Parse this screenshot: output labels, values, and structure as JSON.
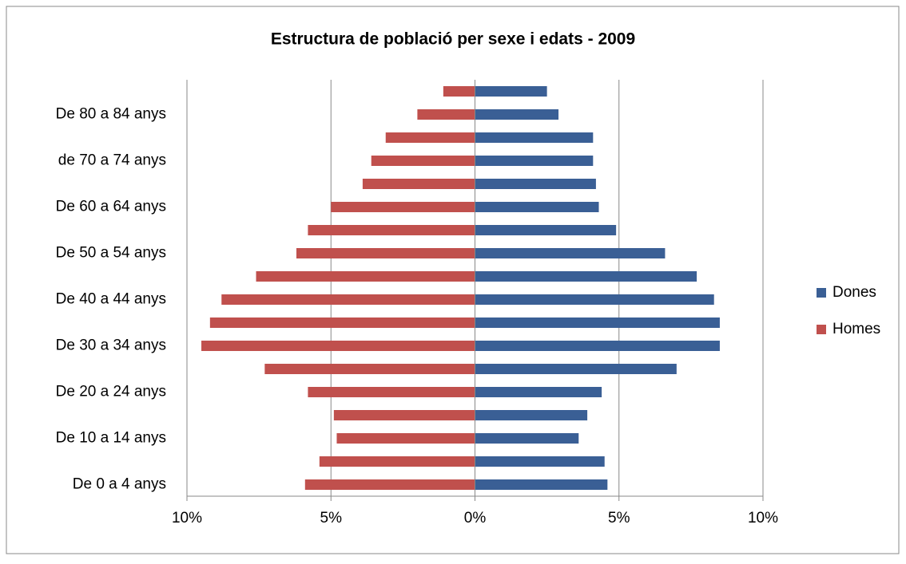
{
  "chart_data": {
    "type": "bar",
    "orientation": "horizontal",
    "stacked": true,
    "title": "Estructura de població per sexe i edats - 2009",
    "categories": [
      "De 0 a 4 anys",
      null,
      "De 10 a 14 anys",
      null,
      "De 20 a 24 anys",
      null,
      "De 30 a 34 anys",
      null,
      "De 40 a 44 anys",
      null,
      "De 50 a 54 anys",
      null,
      "De 60 a 64 anys",
      null,
      "de 70 a 74 anys",
      null,
      "De 80 a 84 anys",
      null
    ],
    "series": [
      {
        "name": "Dones",
        "color": "#3a5f95",
        "values": [
          4.6,
          4.5,
          3.6,
          3.9,
          4.4,
          7.0,
          8.5,
          8.5,
          8.3,
          7.7,
          6.6,
          4.9,
          4.3,
          4.2,
          4.1,
          4.1,
          2.9,
          2.5
        ]
      },
      {
        "name": "Homes",
        "color": "#c0504d",
        "values": [
          -5.9,
          -5.4,
          -4.8,
          -4.9,
          -5.8,
          -7.3,
          -9.5,
          -9.2,
          -8.8,
          -7.6,
          -6.2,
          -5.8,
          -5.0,
          -3.9,
          -3.6,
          -3.1,
          -2.0,
          -1.1
        ]
      }
    ],
    "xlim": [
      -10,
      10
    ],
    "xticks": [
      {
        "value": -10,
        "label": "10%"
      },
      {
        "value": -5,
        "label": "5%"
      },
      {
        "value": 0,
        "label": "0%"
      },
      {
        "value": 5,
        "label": "5%"
      },
      {
        "value": 10,
        "label": "10%"
      }
    ],
    "grid": true,
    "legend": "right"
  }
}
